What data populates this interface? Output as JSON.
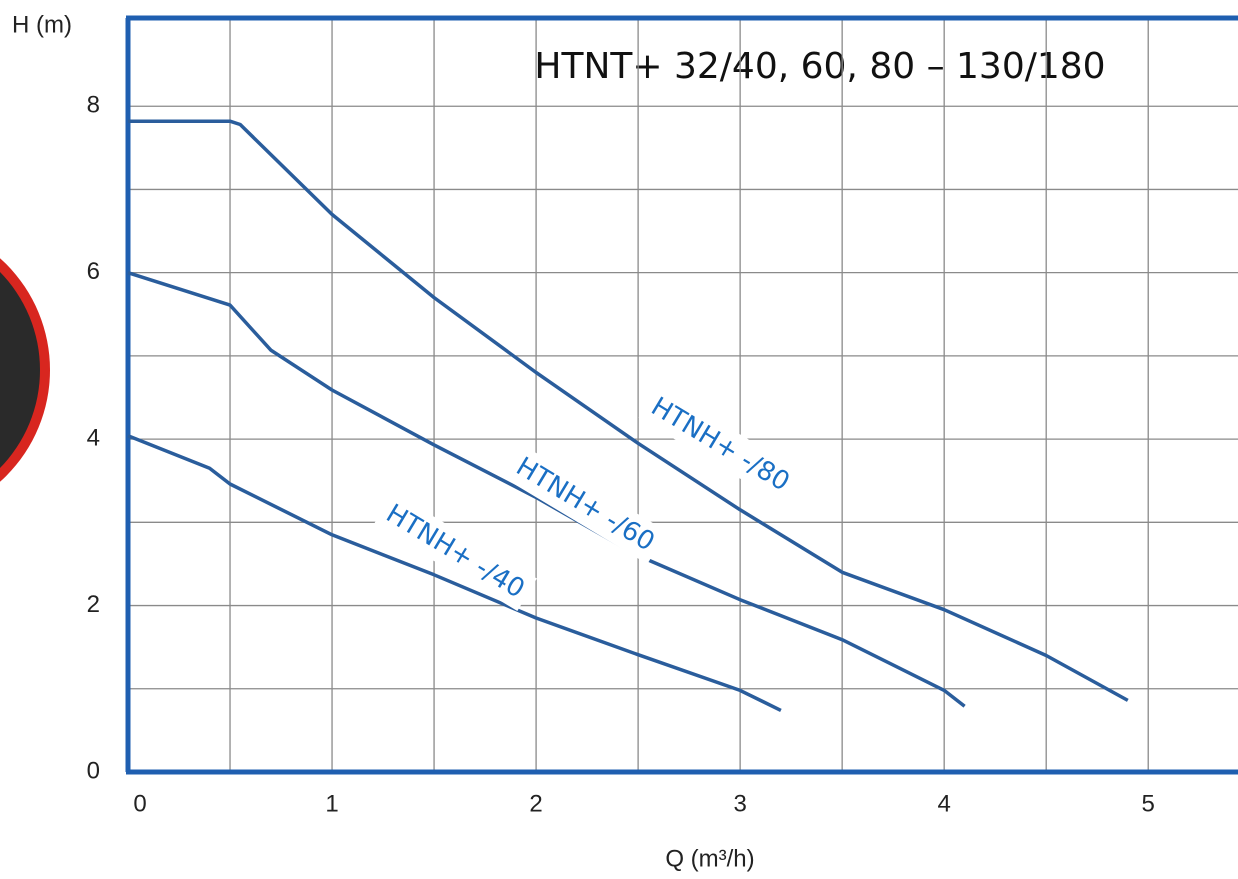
{
  "chart_data": {
    "type": "line",
    "title": "HTNT+ 32/40, 60, 80 – 130/180",
    "x_label": "Q (m³/h)",
    "y_label": "H (m)",
    "xlim": [
      0,
      5.44
    ],
    "ylim": [
      0,
      9.06
    ],
    "xticks": [
      0,
      1,
      2,
      3,
      4,
      5
    ],
    "yticks": [
      0,
      2,
      4,
      6,
      8
    ],
    "xgrid": [
      0.5,
      1,
      1.5,
      2,
      2.5,
      3,
      3.5,
      4,
      4.5,
      5
    ],
    "ygrid": [
      1,
      2,
      3,
      4,
      5,
      6,
      7,
      8
    ],
    "grid": true,
    "series": [
      {
        "name": "HTNH+ -/80",
        "color": "#2a5d9c",
        "x": [
          0,
          0.5,
          0.55,
          1,
          1.5,
          2,
          2.5,
          3,
          3.5,
          4,
          4.5,
          4.9
        ],
        "values": [
          7.82,
          7.82,
          7.78,
          6.7,
          5.7,
          4.8,
          3.95,
          3.15,
          2.4,
          1.95,
          1.4,
          0.86
        ]
      },
      {
        "name": "HTNH+ -/60",
        "color": "#2a5d9c",
        "x": [
          0,
          0.5,
          0.7,
          1,
          1.5,
          2,
          2.5,
          3,
          3.5,
          4,
          4.1
        ],
        "values": [
          6.0,
          5.61,
          5.07,
          4.59,
          3.93,
          3.3,
          2.6,
          2.07,
          1.59,
          0.98,
          0.79
        ]
      },
      {
        "name": "HTNH+ -/40",
        "color": "#2a5d9c",
        "x": [
          0,
          0.4,
          0.5,
          1,
          1.5,
          2,
          2.5,
          3,
          3.2
        ],
        "values": [
          4.04,
          3.65,
          3.46,
          2.85,
          2.37,
          1.85,
          1.41,
          0.98,
          0.74
        ]
      }
    ]
  }
}
